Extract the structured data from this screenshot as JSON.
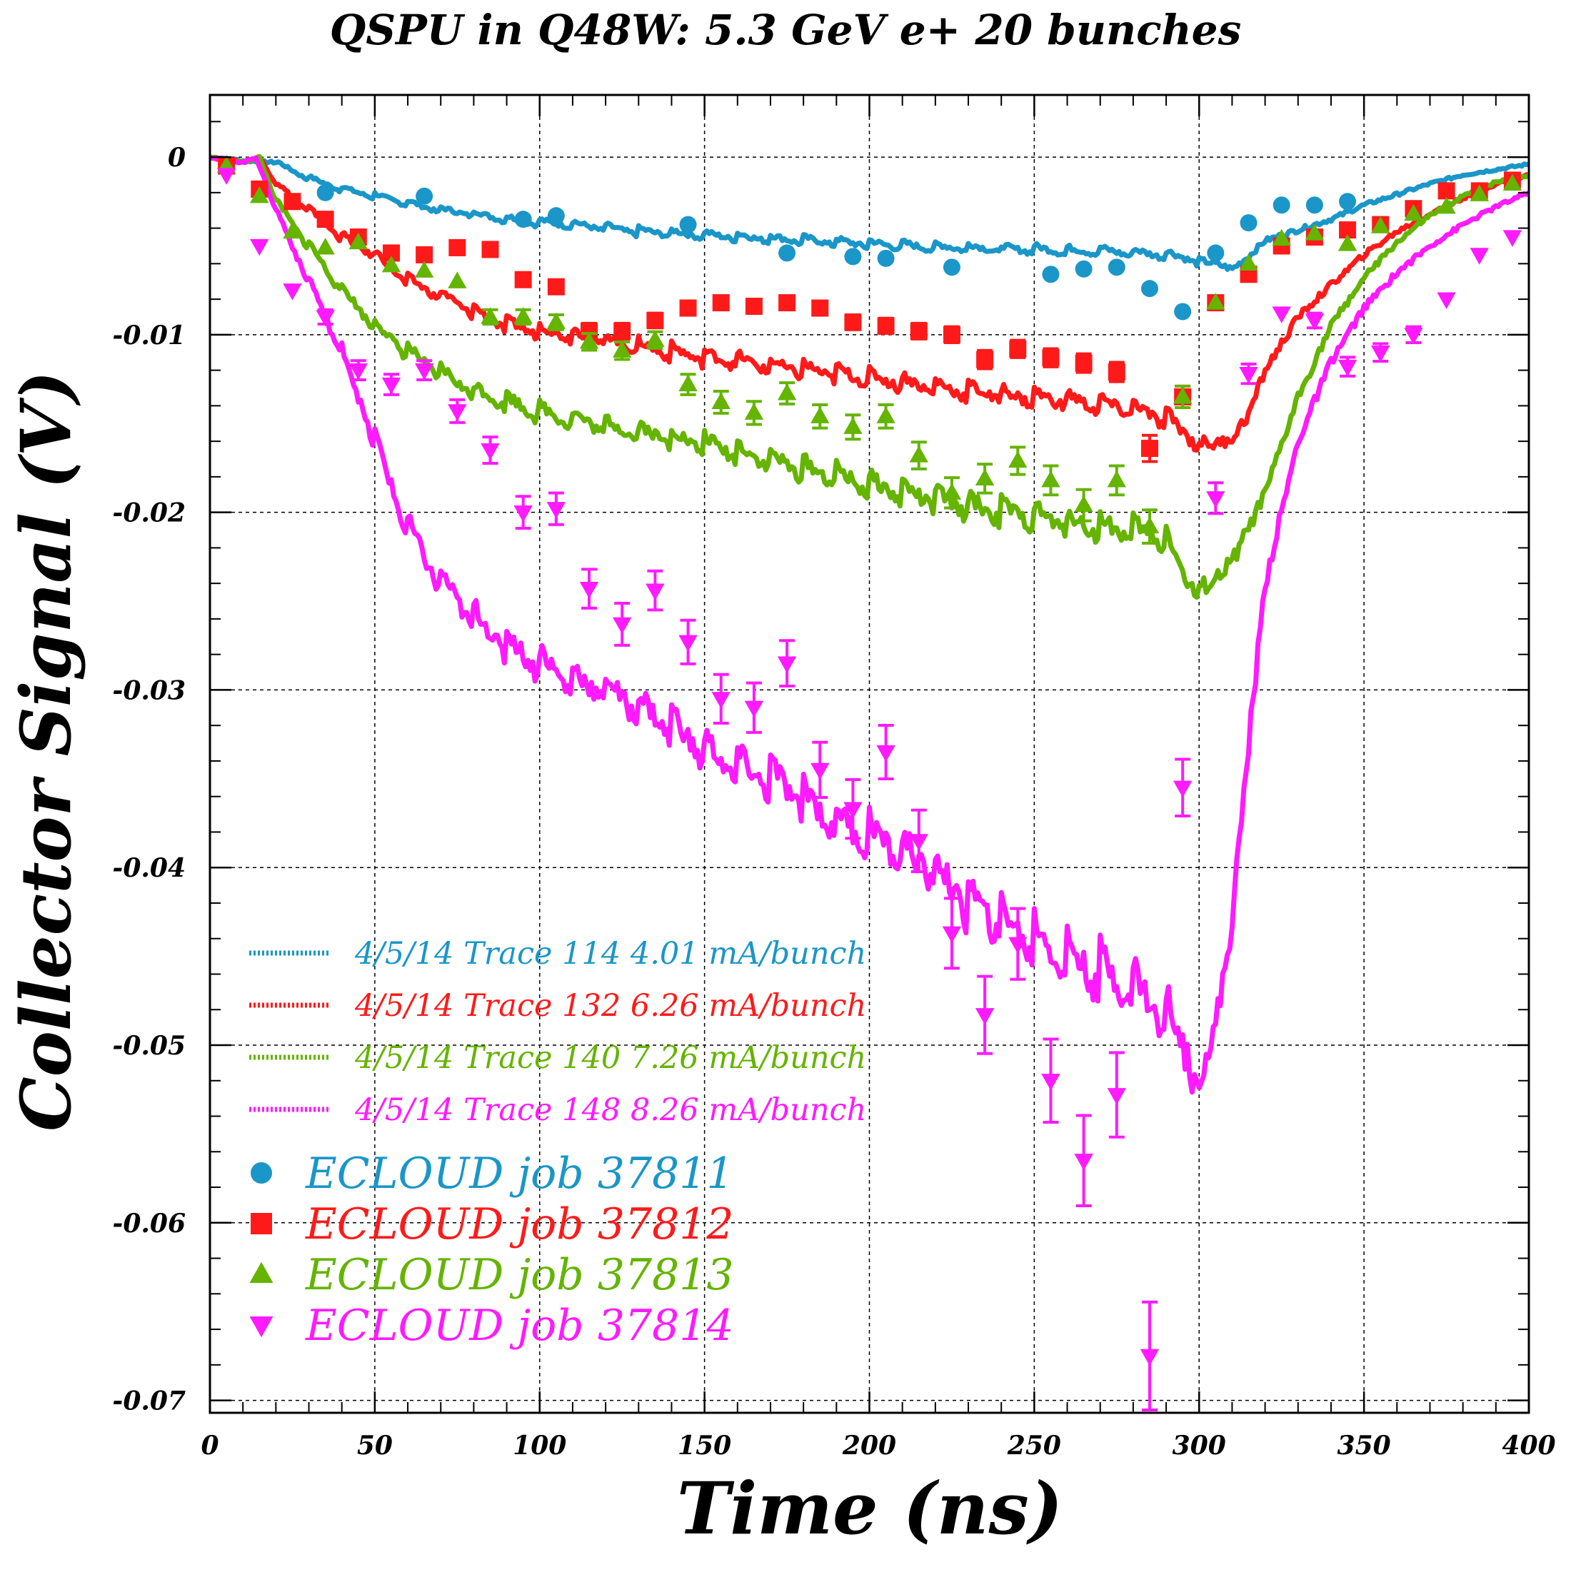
{
  "chart_data": {
    "type": "scatter",
    "title": "QSPU in Q48W:  5.3 GeV e+ 20 bunches",
    "xlabel": "Time (ns)",
    "ylabel": "Collector Signal (V)",
    "xlim": [
      0,
      400
    ],
    "ylim": [
      -0.0707,
      0.0035
    ],
    "grid": true,
    "legend_position": "bottom-left",
    "x_ticks": [
      0,
      50,
      100,
      150,
      200,
      250,
      300,
      350,
      400
    ],
    "x_tick_labels": [
      "0",
      "50",
      "100",
      "150",
      "200",
      "250",
      "300",
      "350",
      "400"
    ],
    "y_ticks": [
      0,
      -0.01,
      -0.02,
      -0.03,
      -0.04,
      -0.05,
      -0.06,
      -0.07
    ],
    "y_tick_labels": [
      "0",
      "-0.01",
      "-0.02",
      "-0.03",
      "-0.04",
      "-0.05",
      "-0.06",
      "-0.07"
    ],
    "measured_traces": [
      {
        "name": "4/5/14 Trace 114  4.01 mA/bunch",
        "color": "#1a96c8",
        "x": [
          0,
          10,
          20,
          30,
          40,
          50,
          60,
          70,
          80,
          90,
          100,
          110,
          120,
          130,
          140,
          150,
          160,
          170,
          180,
          190,
          200,
          210,
          220,
          230,
          240,
          250,
          260,
          270,
          280,
          290,
          300,
          305,
          310,
          315,
          320,
          330,
          340,
          350,
          360,
          370,
          380,
          390,
          400
        ],
        "y": [
          0.0,
          -0.0002,
          -0.0003,
          -0.0012,
          -0.0018,
          -0.0022,
          -0.0026,
          -0.003,
          -0.0032,
          -0.0035,
          -0.0037,
          -0.0038,
          -0.004,
          -0.0042,
          -0.0043,
          -0.0044,
          -0.0045,
          -0.0046,
          -0.0047,
          -0.0048,
          -0.0049,
          -0.005,
          -0.0051,
          -0.0051,
          -0.0052,
          -0.0052,
          -0.0053,
          -0.0053,
          -0.0054,
          -0.0055,
          -0.0058,
          -0.006,
          -0.0063,
          -0.0056,
          -0.0047,
          -0.0041,
          -0.0035,
          -0.0027,
          -0.0021,
          -0.0015,
          -0.001,
          -0.0007,
          -0.0004
        ]
      },
      {
        "name": "4/5/14 Trace 132  6.26 mA/bunch",
        "color": "#ff1a1a",
        "x": [
          0,
          10,
          15,
          20,
          30,
          40,
          50,
          60,
          70,
          80,
          90,
          100,
          110,
          120,
          130,
          140,
          150,
          160,
          170,
          180,
          190,
          200,
          210,
          220,
          230,
          240,
          250,
          260,
          270,
          280,
          290,
          300,
          305,
          310,
          315,
          320,
          330,
          340,
          350,
          360,
          370,
          380,
          390,
          400
        ],
        "y": [
          0.0,
          -0.0003,
          0.0,
          -0.0015,
          -0.003,
          -0.0045,
          -0.0055,
          -0.007,
          -0.0078,
          -0.0087,
          -0.0095,
          -0.0098,
          -0.01,
          -0.0103,
          -0.0107,
          -0.011,
          -0.0113,
          -0.0115,
          -0.0118,
          -0.012,
          -0.0122,
          -0.0125,
          -0.0127,
          -0.013,
          -0.0132,
          -0.0134,
          -0.0136,
          -0.0137,
          -0.014,
          -0.0142,
          -0.0148,
          -0.016,
          -0.0162,
          -0.0158,
          -0.0145,
          -0.012,
          -0.009,
          -0.0072,
          -0.0055,
          -0.0042,
          -0.0032,
          -0.0023,
          -0.0015,
          -0.001
        ]
      },
      {
        "name": "4/5/14 Trace 140  7.26 mA/bunch",
        "color": "#64b400",
        "x": [
          0,
          10,
          15,
          20,
          30,
          40,
          50,
          60,
          70,
          80,
          90,
          100,
          110,
          120,
          130,
          140,
          150,
          160,
          170,
          180,
          190,
          200,
          210,
          220,
          230,
          240,
          250,
          260,
          270,
          280,
          290,
          295,
          300,
          305,
          310,
          320,
          330,
          340,
          350,
          360,
          370,
          380,
          390,
          400
        ],
        "y": [
          0.0,
          -0.0003,
          0.0,
          -0.0025,
          -0.005,
          -0.0075,
          -0.0095,
          -0.011,
          -0.0122,
          -0.0132,
          -0.0138,
          -0.0144,
          -0.0148,
          -0.0152,
          -0.0155,
          -0.0158,
          -0.0162,
          -0.0166,
          -0.0171,
          -0.0176,
          -0.018,
          -0.0185,
          -0.0189,
          -0.0193,
          -0.0197,
          -0.02,
          -0.0203,
          -0.0206,
          -0.0209,
          -0.0211,
          -0.0215,
          -0.0235,
          -0.0243,
          -0.0238,
          -0.0228,
          -0.019,
          -0.0135,
          -0.0095,
          -0.0068,
          -0.0048,
          -0.0033,
          -0.0022,
          -0.0014,
          -0.001
        ]
      },
      {
        "name": "4/5/14 Trace 148  8.26 mA/bunch",
        "color": "#ff1aff",
        "x": [
          0,
          10,
          14,
          20,
          30,
          40,
          50,
          60,
          70,
          80,
          90,
          100,
          110,
          120,
          130,
          140,
          150,
          160,
          170,
          180,
          190,
          200,
          210,
          220,
          230,
          240,
          250,
          260,
          270,
          280,
          290,
          295,
          300,
          305,
          310,
          315,
          320,
          330,
          340,
          350,
          360,
          370,
          380,
          390,
          400
        ],
        "y": [
          0.0,
          -0.0003,
          0.0,
          -0.003,
          -0.007,
          -0.011,
          -0.016,
          -0.021,
          -0.024,
          -0.026,
          -0.0275,
          -0.0285,
          -0.0295,
          -0.03,
          -0.031,
          -0.032,
          -0.0335,
          -0.0345,
          -0.035,
          -0.0362,
          -0.0375,
          -0.0383,
          -0.0392,
          -0.0403,
          -0.042,
          -0.0432,
          -0.0441,
          -0.0452,
          -0.046,
          -0.0468,
          -0.0485,
          -0.05,
          -0.0515,
          -0.049,
          -0.043,
          -0.033,
          -0.024,
          -0.016,
          -0.0115,
          -0.0085,
          -0.0065,
          -0.005,
          -0.0038,
          -0.0028,
          -0.002
        ]
      }
    ],
    "simulation_series": [
      {
        "name": "ECLOUD job 37811",
        "marker": "circle",
        "color": "#1a96c8",
        "x": [
          35,
          65,
          95,
          105,
          145,
          175,
          195,
          205,
          225,
          255,
          265,
          275,
          285,
          295,
          305,
          315,
          325,
          335,
          345
        ],
        "y": [
          -0.002,
          -0.0022,
          -0.0035,
          -0.0033,
          -0.0038,
          -0.0054,
          -0.0056,
          -0.0057,
          -0.0062,
          -0.0066,
          -0.0063,
          -0.0062,
          -0.0074,
          -0.0087,
          -0.0054,
          -0.0037,
          -0.0027,
          -0.0027,
          -0.0025
        ]
      },
      {
        "name": "ECLOUD job 37812",
        "marker": "square",
        "color": "#ff1a1a",
        "x": [
          5,
          15,
          25,
          35,
          45,
          55,
          65,
          75,
          85,
          95,
          105,
          115,
          125,
          135,
          145,
          155,
          165,
          175,
          185,
          195,
          205,
          215,
          225,
          235,
          245,
          255,
          265,
          275,
          285,
          295,
          305,
          315,
          325,
          335,
          345,
          355,
          365,
          375,
          385,
          395
        ],
        "y": [
          -0.0005,
          -0.0018,
          -0.0025,
          -0.0035,
          -0.0045,
          -0.0054,
          -0.0055,
          -0.0051,
          -0.0052,
          -0.0069,
          -0.0073,
          -0.0098,
          -0.0098,
          -0.0092,
          -0.0085,
          -0.0082,
          -0.0084,
          -0.0082,
          -0.0085,
          -0.0093,
          -0.0095,
          -0.0098,
          -0.01,
          -0.0114,
          -0.0108,
          -0.0113,
          -0.0116,
          -0.0121,
          -0.0164,
          -0.0135,
          -0.0082,
          -0.0066,
          -0.005,
          -0.0045,
          -0.0041,
          -0.0038,
          -0.0029,
          -0.0019,
          -0.0019,
          -0.0013
        ]
      },
      {
        "name": "ECLOUD job 37813",
        "marker": "triangle-up",
        "color": "#64b400",
        "x": [
          5,
          15,
          25,
          35,
          45,
          55,
          65,
          75,
          85,
          95,
          105,
          115,
          125,
          135,
          145,
          155,
          165,
          175,
          185,
          195,
          205,
          215,
          225,
          235,
          245,
          255,
          265,
          275,
          285,
          295,
          305,
          315,
          325,
          335,
          345,
          355,
          365,
          375,
          385,
          395
        ],
        "y": [
          -0.0005,
          -0.0022,
          -0.0042,
          -0.0051,
          -0.0048,
          -0.0061,
          -0.0064,
          -0.007,
          -0.009,
          -0.009,
          -0.0093,
          -0.0104,
          -0.0109,
          -0.0103,
          -0.0128,
          -0.0138,
          -0.0144,
          -0.0133,
          -0.0146,
          -0.0152,
          -0.0146,
          -0.0168,
          -0.0189,
          -0.0181,
          -0.0171,
          -0.0182,
          -0.0196,
          -0.0182,
          -0.0208,
          -0.0135,
          -0.0082,
          -0.006,
          -0.0046,
          -0.0043,
          -0.0049,
          -0.0039,
          -0.0032,
          -0.0028,
          -0.0021,
          -0.0015
        ]
      },
      {
        "name": "ECLOUD job 37814",
        "marker": "triangle-down",
        "color": "#ff1aff",
        "x": [
          5,
          15,
          25,
          35,
          45,
          55,
          65,
          75,
          85,
          95,
          105,
          115,
          125,
          135,
          145,
          155,
          165,
          175,
          185,
          195,
          205,
          215,
          225,
          235,
          245,
          255,
          265,
          275,
          285,
          295,
          305,
          315,
          325,
          335,
          345,
          355,
          365,
          375,
          385,
          395
        ],
        "y": [
          -0.001,
          -0.005,
          -0.0075,
          -0.009,
          -0.012,
          -0.0128,
          -0.012,
          -0.0143,
          -0.0165,
          -0.02,
          -0.0198,
          -0.0243,
          -0.0263,
          -0.0244,
          -0.0273,
          -0.0305,
          -0.031,
          -0.0285,
          -0.0345,
          -0.0367,
          -0.0335,
          -0.0385,
          -0.0437,
          -0.0483,
          -0.0443,
          -0.052,
          -0.0565,
          -0.0528,
          -0.0675,
          -0.0355,
          -0.0192,
          -0.0122,
          -0.0088,
          -0.0092,
          -0.0118,
          -0.011,
          -0.01,
          -0.008,
          -0.0055,
          -0.0045
        ]
      }
    ]
  }
}
